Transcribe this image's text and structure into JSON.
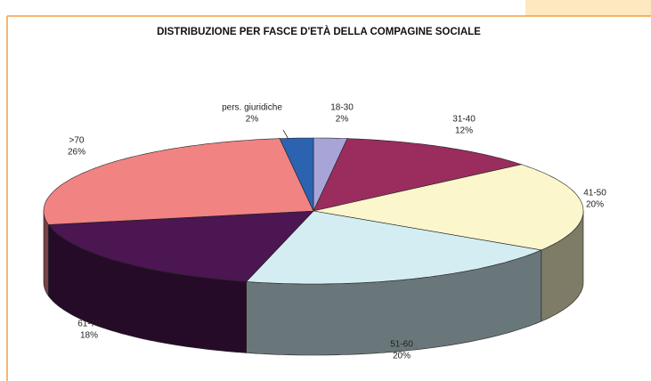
{
  "chart_data": {
    "type": "pie3d",
    "title": "DISTRIBUZIONE PER FASCE D'ETÀ DELLA COMPAGINE SOCIALE",
    "categories": [
      "18-30",
      "31-40",
      "41-50",
      "51-60",
      "61-70",
      ">70",
      "pers. giuridiche"
    ],
    "values": [
      2,
      12,
      20,
      20,
      18,
      26,
      2
    ],
    "value_labels": [
      "2%",
      "12%",
      "20%",
      "20%",
      "18%",
      "26%",
      "2%"
    ],
    "colors": [
      "#a9a4d8",
      "#9a2d5e",
      "#fbf6cb",
      "#d4edf3",
      "#4b1651",
      "#f28383",
      "#2b63b0"
    ]
  }
}
